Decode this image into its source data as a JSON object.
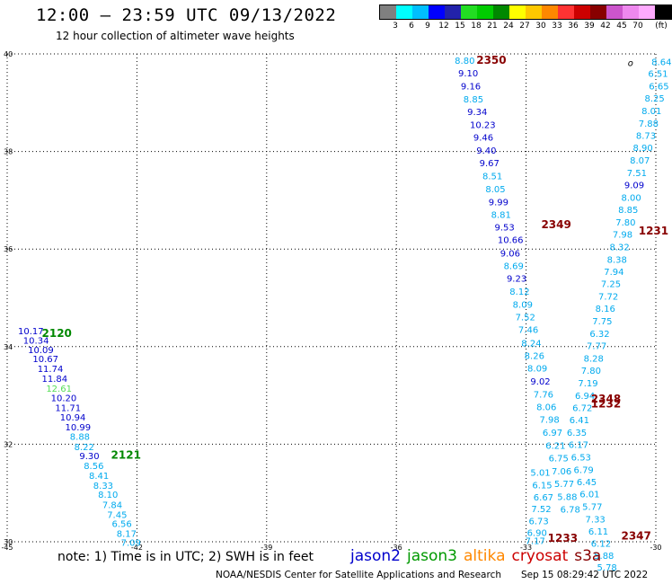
{
  "header": {
    "title": "12:00 – 23:59 UTC 09/13/2022",
    "subtitle": "12 hour collection of altimeter wave heights"
  },
  "legend": {
    "unit": "(ft)",
    "colors": [
      "#808080",
      "#00ffff",
      "#00bfff",
      "#0000ff",
      "#2222aa",
      "#22dd22",
      "#00cc00",
      "#008800",
      "#ffff00",
      "#ffc800",
      "#ff8800",
      "#ff3333",
      "#cc0000",
      "#880000",
      "#cc55cc",
      "#ee88ee",
      "#ffaaff",
      "#000000"
    ],
    "labels": [
      "3",
      "6",
      "9",
      "12",
      "15",
      "18",
      "21",
      "24",
      "27",
      "30",
      "33",
      "36",
      "39",
      "42",
      "45",
      "70"
    ]
  },
  "map": {
    "x_ticks": [
      "-45",
      "-42",
      "-39",
      "-36",
      "-33",
      "-30"
    ],
    "y_ticks": [
      "40",
      "38",
      "36",
      "34",
      "32",
      "30"
    ],
    "lon_range": [
      -45,
      -30
    ],
    "lat_range": [
      30,
      40
    ],
    "marker": {
      "label": "o",
      "lon": -30.65,
      "lat": 39.75
    },
    "passes": [
      {
        "label": "2120",
        "color": "#008800",
        "lon": -44.2,
        "lat": 34.2
      },
      {
        "label": "2121",
        "color": "#008800",
        "lon": -42.6,
        "lat": 31.7
      },
      {
        "label": "2350",
        "color": "#880000",
        "lon": -34.15,
        "lat": 39.8
      },
      {
        "label": "2349",
        "color": "#880000",
        "lon": -32.65,
        "lat": 36.43
      },
      {
        "label": "1231",
        "color": "#880000",
        "lon": -30.4,
        "lat": 36.3
      },
      {
        "label": "2348",
        "color": "#880000",
        "lon": -31.5,
        "lat": 32.85
      },
      {
        "label": "1232",
        "color": "#880000",
        "lon": -31.5,
        "lat": 32.75
      },
      {
        "label": "1233",
        "color": "#880000",
        "lon": -32.5,
        "lat": 30.0
      },
      {
        "label": "2347",
        "color": "#880000",
        "lon": -30.8,
        "lat": 30.05
      }
    ],
    "points": [
      {
        "v": "10.17",
        "c": "#0000cc",
        "lon": -44.75,
        "lat": 34.25
      },
      {
        "v": "10.34",
        "c": "#0000cc",
        "lon": -44.63,
        "lat": 34.06
      },
      {
        "v": "10.09",
        "c": "#0000cc",
        "lon": -44.52,
        "lat": 33.87
      },
      {
        "v": "10.67",
        "c": "#0000cc",
        "lon": -44.41,
        "lat": 33.68
      },
      {
        "v": "11.74",
        "c": "#0000cc",
        "lon": -44.3,
        "lat": 33.48
      },
      {
        "v": "11.84",
        "c": "#0000cc",
        "lon": -44.2,
        "lat": 33.28
      },
      {
        "v": "12.61",
        "c": "#55dd55",
        "lon": -44.1,
        "lat": 33.08
      },
      {
        "v": "10.20",
        "c": "#0000cc",
        "lon": -43.99,
        "lat": 32.88
      },
      {
        "v": "11.71",
        "c": "#0000cc",
        "lon": -43.89,
        "lat": 32.68
      },
      {
        "v": "10.94",
        "c": "#0000cc",
        "lon": -43.78,
        "lat": 32.49
      },
      {
        "v": "10.99",
        "c": "#0000cc",
        "lon": -43.66,
        "lat": 32.28
      },
      {
        "v": "8.88",
        "c": "#00aaee",
        "lon": -43.55,
        "lat": 32.09
      },
      {
        "v": "8.22",
        "c": "#00aaee",
        "lon": -43.45,
        "lat": 31.88
      },
      {
        "v": "9.30",
        "c": "#0000cc",
        "lon": -43.33,
        "lat": 31.69
      },
      {
        "v": "8.56",
        "c": "#00aaee",
        "lon": -43.23,
        "lat": 31.49
      },
      {
        "v": "8.41",
        "c": "#00aaee",
        "lon": -43.11,
        "lat": 31.29
      },
      {
        "v": "8.33",
        "c": "#00aaee",
        "lon": -43.01,
        "lat": 31.09
      },
      {
        "v": "8.10",
        "c": "#00aaee",
        "lon": -42.9,
        "lat": 30.9
      },
      {
        "v": "7.84",
        "c": "#00aaee",
        "lon": -42.8,
        "lat": 30.69
      },
      {
        "v": "7.45",
        "c": "#00aaee",
        "lon": -42.69,
        "lat": 30.49
      },
      {
        "v": "6.56",
        "c": "#00aaee",
        "lon": -42.58,
        "lat": 30.3
      },
      {
        "v": "8.17",
        "c": "#00aaee",
        "lon": -42.47,
        "lat": 30.1
      },
      {
        "v": "7.09",
        "c": "#00aaee",
        "lon": -42.37,
        "lat": 29.92
      },
      {
        "v": "8.80",
        "c": "#00aaee",
        "lon": -34.65,
        "lat": 39.8
      },
      {
        "v": "9.10",
        "c": "#0000cc",
        "lon": -34.57,
        "lat": 39.54
      },
      {
        "v": "9.16",
        "c": "#0000cc",
        "lon": -34.51,
        "lat": 39.27
      },
      {
        "v": "8.85",
        "c": "#00aaee",
        "lon": -34.45,
        "lat": 39.01
      },
      {
        "v": "9.34",
        "c": "#0000cc",
        "lon": -34.36,
        "lat": 38.75
      },
      {
        "v": "10.23",
        "c": "#0000cc",
        "lon": -34.3,
        "lat": 38.48
      },
      {
        "v": "9.46",
        "c": "#0000cc",
        "lon": -34.22,
        "lat": 38.22
      },
      {
        "v": "9.40",
        "c": "#0000cc",
        "lon": -34.15,
        "lat": 37.96
      },
      {
        "v": "9.67",
        "c": "#0000cc",
        "lon": -34.08,
        "lat": 37.7
      },
      {
        "v": "8.51",
        "c": "#00aaee",
        "lon": -34.01,
        "lat": 37.43
      },
      {
        "v": "8.05",
        "c": "#00aaee",
        "lon": -33.94,
        "lat": 37.16
      },
      {
        "v": "9.99",
        "c": "#0000cc",
        "lon": -33.87,
        "lat": 36.9
      },
      {
        "v": "8.81",
        "c": "#00aaee",
        "lon": -33.81,
        "lat": 36.64
      },
      {
        "v": "9.53",
        "c": "#0000cc",
        "lon": -33.73,
        "lat": 36.38
      },
      {
        "v": "10.66",
        "c": "#0000cc",
        "lon": -33.66,
        "lat": 36.12
      },
      {
        "v": "9.06",
        "c": "#0000cc",
        "lon": -33.6,
        "lat": 35.85
      },
      {
        "v": "8.69",
        "c": "#00aaee",
        "lon": -33.52,
        "lat": 35.59
      },
      {
        "v": "9.23",
        "c": "#0000cc",
        "lon": -33.45,
        "lat": 35.33
      },
      {
        "v": "8.12",
        "c": "#00aaee",
        "lon": -33.38,
        "lat": 35.06
      },
      {
        "v": "8.09",
        "c": "#00aaee",
        "lon": -33.31,
        "lat": 34.8
      },
      {
        "v": "7.52",
        "c": "#00aaee",
        "lon": -33.25,
        "lat": 34.54
      },
      {
        "v": "7.46",
        "c": "#00aaee",
        "lon": -33.18,
        "lat": 34.28
      },
      {
        "v": "8.24",
        "c": "#00aaee",
        "lon": -33.11,
        "lat": 34.01
      },
      {
        "v": "8.26",
        "c": "#00aaee",
        "lon": -33.04,
        "lat": 33.75
      },
      {
        "v": "8.09",
        "c": "#00aaee",
        "lon": -32.97,
        "lat": 33.49
      },
      {
        "v": "9.02",
        "c": "#0000cc",
        "lon": -32.9,
        "lat": 33.22
      },
      {
        "v": "7.76",
        "c": "#00aaee",
        "lon": -32.83,
        "lat": 32.96
      },
      {
        "v": "8.06",
        "c": "#00aaee",
        "lon": -32.76,
        "lat": 32.7
      },
      {
        "v": "7.98",
        "c": "#00aaee",
        "lon": -32.69,
        "lat": 32.44
      },
      {
        "v": "6.97",
        "c": "#00aaee",
        "lon": -32.62,
        "lat": 32.17
      },
      {
        "v": "6.21",
        "c": "#00aaee",
        "lon": -32.55,
        "lat": 31.91
      },
      {
        "v": "6.75",
        "c": "#00aaee",
        "lon": -32.48,
        "lat": 31.65
      },
      {
        "v": "7.06",
        "c": "#00aaee",
        "lon": -32.41,
        "lat": 31.38
      },
      {
        "v": "5.77",
        "c": "#00aaee",
        "lon": -32.35,
        "lat": 31.12
      },
      {
        "v": "5.88",
        "c": "#00aaee",
        "lon": -32.28,
        "lat": 30.86
      },
      {
        "v": "6.78",
        "c": "#00aaee",
        "lon": -32.21,
        "lat": 30.6
      },
      {
        "v": "5.01",
        "c": "#00aaee",
        "lon": -32.9,
        "lat": 31.35
      },
      {
        "v": "6.15",
        "c": "#00aaee",
        "lon": -32.86,
        "lat": 31.1
      },
      {
        "v": "6.67",
        "c": "#00aaee",
        "lon": -32.83,
        "lat": 30.85
      },
      {
        "v": "7.52",
        "c": "#00aaee",
        "lon": -32.88,
        "lat": 30.61
      },
      {
        "v": "6.73",
        "c": "#00aaee",
        "lon": -32.94,
        "lat": 30.36
      },
      {
        "v": "6.90",
        "c": "#00aaee",
        "lon": -32.98,
        "lat": 30.12
      },
      {
        "v": "7.17",
        "c": "#00aaee",
        "lon": -33.02,
        "lat": 29.95
      },
      {
        "v": "8.64",
        "c": "#00aaee",
        "lon": -30.1,
        "lat": 39.77
      },
      {
        "v": "6.51",
        "c": "#00aaee",
        "lon": -30.18,
        "lat": 39.53
      },
      {
        "v": "6.65",
        "c": "#00aaee",
        "lon": -30.16,
        "lat": 39.27
      },
      {
        "v": "8.25",
        "c": "#00aaee",
        "lon": -30.26,
        "lat": 39.02
      },
      {
        "v": "8.01",
        "c": "#00aaee",
        "lon": -30.33,
        "lat": 38.77
      },
      {
        "v": "7.88",
        "c": "#00aaee",
        "lon": -30.4,
        "lat": 38.51
      },
      {
        "v": "8.73",
        "c": "#00aaee",
        "lon": -30.46,
        "lat": 38.26
      },
      {
        "v": "8.90",
        "c": "#00aaee",
        "lon": -30.53,
        "lat": 38.01
      },
      {
        "v": "8.07",
        "c": "#00aaee",
        "lon": -30.6,
        "lat": 37.75
      },
      {
        "v": "7.51",
        "c": "#00aaee",
        "lon": -30.67,
        "lat": 37.5
      },
      {
        "v": "9.09",
        "c": "#0000cc",
        "lon": -30.73,
        "lat": 37.25
      },
      {
        "v": "8.00",
        "c": "#00aaee",
        "lon": -30.8,
        "lat": 36.99
      },
      {
        "v": "8.85",
        "c": "#00aaee",
        "lon": -30.87,
        "lat": 36.74
      },
      {
        "v": "7.80",
        "c": "#00aaee",
        "lon": -30.93,
        "lat": 36.48
      },
      {
        "v": "7.98",
        "c": "#00aaee",
        "lon": -31.0,
        "lat": 36.23
      },
      {
        "v": "8.32",
        "c": "#00aaee",
        "lon": -31.07,
        "lat": 35.98
      },
      {
        "v": "8.38",
        "c": "#00aaee",
        "lon": -31.13,
        "lat": 35.72
      },
      {
        "v": "7.94",
        "c": "#00aaee",
        "lon": -31.2,
        "lat": 35.47
      },
      {
        "v": "7.25",
        "c": "#00aaee",
        "lon": -31.27,
        "lat": 35.22
      },
      {
        "v": "7.72",
        "c": "#00aaee",
        "lon": -31.33,
        "lat": 34.96
      },
      {
        "v": "8.16",
        "c": "#00aaee",
        "lon": -31.4,
        "lat": 34.71
      },
      {
        "v": "7.75",
        "c": "#00aaee",
        "lon": -31.47,
        "lat": 34.46
      },
      {
        "v": "6.32",
        "c": "#00aaee",
        "lon": -31.53,
        "lat": 34.2
      },
      {
        "v": "7.77",
        "c": "#00aaee",
        "lon": -31.6,
        "lat": 33.95
      },
      {
        "v": "8.28",
        "c": "#00aaee",
        "lon": -31.67,
        "lat": 33.69
      },
      {
        "v": "7.80",
        "c": "#00aaee",
        "lon": -31.73,
        "lat": 33.44
      },
      {
        "v": "7.19",
        "c": "#00aaee",
        "lon": -31.8,
        "lat": 33.19
      },
      {
        "v": "6.94",
        "c": "#00aaee",
        "lon": -31.87,
        "lat": 32.93
      },
      {
        "v": "6.72",
        "c": "#00aaee",
        "lon": -31.93,
        "lat": 32.68
      },
      {
        "v": "6.41",
        "c": "#00aaee",
        "lon": -32.0,
        "lat": 32.43
      },
      {
        "v": "6.35",
        "c": "#00aaee",
        "lon": -32.06,
        "lat": 32.17
      },
      {
        "v": "6.17",
        "c": "#00aaee",
        "lon": -32.02,
        "lat": 31.92
      },
      {
        "v": "6.53",
        "c": "#00aaee",
        "lon": -31.96,
        "lat": 31.67
      },
      {
        "v": "6.79",
        "c": "#00aaee",
        "lon": -31.9,
        "lat": 31.41
      },
      {
        "v": "6.45",
        "c": "#00aaee",
        "lon": -31.83,
        "lat": 31.16
      },
      {
        "v": "6.01",
        "c": "#00aaee",
        "lon": -31.76,
        "lat": 30.91
      },
      {
        "v": "5.77",
        "c": "#00aaee",
        "lon": -31.7,
        "lat": 30.65
      },
      {
        "v": "7.33",
        "c": "#00aaee",
        "lon": -31.63,
        "lat": 30.4
      },
      {
        "v": "6.11",
        "c": "#00aaee",
        "lon": -31.56,
        "lat": 30.15
      },
      {
        "v": "6.12",
        "c": "#00aaee",
        "lon": -31.5,
        "lat": 29.9
      },
      {
        "v": "5.88",
        "c": "#00aaee",
        "lon": -31.43,
        "lat": 29.65
      },
      {
        "v": "5.78",
        "c": "#00aaee",
        "lon": -31.36,
        "lat": 29.41
      }
    ]
  },
  "note": "note: 1) Time is in UTC; 2) SWH is in feet",
  "satellites": [
    {
      "name": "jason2",
      "color": "#0000cc"
    },
    {
      "name": "jason3",
      "color": "#009900"
    },
    {
      "name": "altika",
      "color": "#ff8800"
    },
    {
      "name": "cryosat",
      "color": "#cc0000"
    },
    {
      "name": "s3a",
      "color": "#880000"
    }
  ],
  "footer": {
    "credit": "NOAA/NESDIS Center for Satellite Applications and Research",
    "generated": "Sep 15 08:29:42 UTC 2022"
  }
}
